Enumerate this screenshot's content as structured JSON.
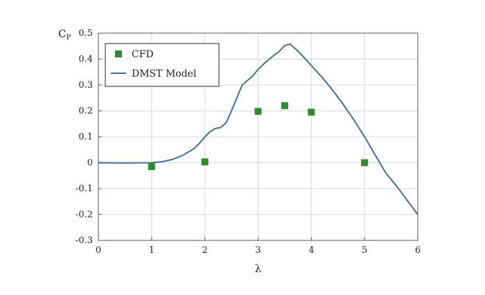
{
  "chart_data": {
    "type": "line",
    "xlabel": "λ",
    "ylabel": "C",
    "ylabel_sub": "P",
    "xlim": [
      0,
      6
    ],
    "ylim": [
      -0.3,
      0.5
    ],
    "xticks": [
      0,
      1,
      2,
      3,
      4,
      5,
      6
    ],
    "yticks": [
      -0.3,
      -0.2,
      -0.1,
      0,
      0.1,
      0.2,
      0.3,
      0.4,
      0.5
    ],
    "xtick_labels": [
      "0",
      "1",
      "2",
      "3",
      "4",
      "5",
      "6"
    ],
    "ytick_labels": [
      "-0.3",
      "-0.2",
      "-0.1",
      "0",
      "0.1",
      "0.2",
      "0.3",
      "0.4",
      "0.5"
    ],
    "grid": true,
    "legend_position": "top-left",
    "series": [
      {
        "name": "CFD",
        "kind": "scatter",
        "marker": "square",
        "color": "#2e8b2e",
        "x": [
          1,
          2,
          3,
          3.5,
          4,
          5
        ],
        "y": [
          -0.015,
          0.003,
          0.198,
          0.22,
          0.195,
          0.0
        ]
      },
      {
        "name": "DMST Model",
        "kind": "line",
        "color": "#3a6fa5",
        "x": [
          0,
          0.5,
          1.0,
          1.2,
          1.4,
          1.6,
          1.8,
          1.9,
          2.0,
          2.1,
          2.2,
          2.3,
          2.4,
          2.5,
          2.6,
          2.7,
          2.8,
          2.9,
          3.0,
          3.1,
          3.2,
          3.3,
          3.4,
          3.5,
          3.6,
          3.7,
          3.8,
          3.9,
          4.0,
          4.2,
          4.4,
          4.6,
          4.8,
          5.0,
          5.2,
          5.4,
          5.6,
          5.8,
          6.0
        ],
        "y": [
          0.0,
          -0.001,
          0.0,
          0.004,
          0.013,
          0.03,
          0.055,
          0.075,
          0.1,
          0.12,
          0.132,
          0.136,
          0.155,
          0.2,
          0.25,
          0.3,
          0.317,
          0.335,
          0.36,
          0.38,
          0.398,
          0.415,
          0.43,
          0.452,
          0.458,
          0.44,
          0.42,
          0.398,
          0.375,
          0.33,
          0.28,
          0.225,
          0.165,
          0.1,
          0.03,
          -0.04,
          -0.09,
          -0.145,
          -0.2
        ]
      }
    ]
  }
}
